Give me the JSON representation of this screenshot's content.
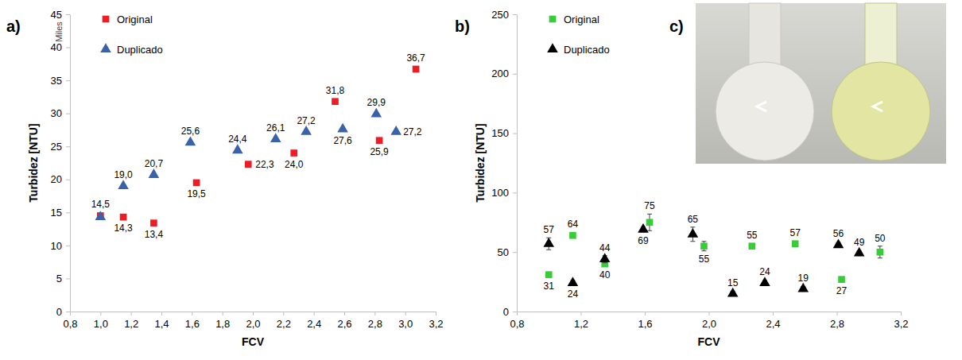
{
  "chart_data": [
    {
      "type": "scatter",
      "panel_label": "a)",
      "x_label": "FCV",
      "y_label": "Turbidez [NTU]",
      "annotations": [
        "Miles"
      ],
      "xlim": [
        0.8,
        3.2
      ],
      "xticks": [
        {
          "value": 0.8,
          "label": "0,8"
        },
        {
          "value": 1.0,
          "label": "1,0"
        },
        {
          "value": 1.2,
          "label": "1,2"
        },
        {
          "value": 1.4,
          "label": "1,4"
        },
        {
          "value": 1.6,
          "label": "1,6"
        },
        {
          "value": 1.8,
          "label": "1,8"
        },
        {
          "value": 2.0,
          "label": "2,0"
        },
        {
          "value": 2.2,
          "label": "2,2"
        },
        {
          "value": 2.4,
          "label": "2,4"
        },
        {
          "value": 2.6,
          "label": "2,6"
        },
        {
          "value": 2.8,
          "label": "2,8"
        },
        {
          "value": 3.0,
          "label": "3,0"
        },
        {
          "value": 3.2,
          "label": "3,2"
        }
      ],
      "ylim": [
        0,
        45
      ],
      "yticks": [
        0,
        5,
        10,
        15,
        20,
        25,
        30,
        35,
        40,
        45
      ],
      "legend": "top-left",
      "data_labels": true,
      "series": [
        {
          "name": "Original",
          "color": "#ee1c24",
          "marker": "square",
          "x": [
            1.0,
            1.15,
            1.35,
            1.63,
            1.97,
            2.27,
            2.54,
            2.83,
            3.07
          ],
          "values": [
            14.5,
            14.3,
            13.4,
            19.5,
            22.3,
            24.0,
            31.8,
            25.9,
            36.7
          ],
          "value_labels": [
            "14,5",
            "14,3",
            "13,4",
            "19,5",
            "22,3",
            "24,0",
            "31,8",
            "25,9",
            "36,7"
          ]
        },
        {
          "name": "Duplicado",
          "color": "#3a62a8",
          "marker": "triangle",
          "x": [
            1.0,
            1.15,
            1.35,
            1.59,
            1.9,
            2.15,
            2.35,
            2.59,
            2.81,
            2.94
          ],
          "values": [
            14.3,
            19.0,
            20.7,
            25.6,
            24.4,
            26.1,
            27.2,
            27.6,
            29.9,
            27.2
          ],
          "value_labels": [
            null,
            "19,0",
            "20,7",
            "25,6",
            "24,4",
            "26,1",
            "27,2",
            "27,6",
            "29,9",
            "27,2"
          ]
        }
      ]
    },
    {
      "type": "scatter",
      "panel_label": "b)",
      "x_label": "FCV",
      "y_label": "Turbidez [NTU]",
      "xlim": [
        0.8,
        3.2
      ],
      "xticks": [
        {
          "value": 0.8,
          "label": "0,8"
        },
        {
          "value": 1.2,
          "label": "1,2"
        },
        {
          "value": 1.6,
          "label": "1,6"
        },
        {
          "value": 2.0,
          "label": "2,0"
        },
        {
          "value": 2.4,
          "label": "2,4"
        },
        {
          "value": 2.8,
          "label": "2,8"
        },
        {
          "value": 3.2,
          "label": "3,2"
        }
      ],
      "ylim": [
        0,
        250
      ],
      "yticks": [
        0,
        50,
        100,
        150,
        200,
        250
      ],
      "legend": "top-left",
      "data_labels": true,
      "series": [
        {
          "name": "Original",
          "color": "#39cc39",
          "marker": "square",
          "x": [
            1.0,
            1.15,
            1.35,
            1.63,
            1.97,
            2.27,
            2.54,
            2.83,
            3.07
          ],
          "values": [
            31,
            64,
            40,
            75,
            55,
            55,
            57,
            27,
            50
          ],
          "errors": [
            2,
            2,
            2,
            7,
            4,
            2,
            2,
            2,
            5
          ]
        },
        {
          "name": "Duplicado",
          "color": "#000000",
          "marker": "triangle",
          "x": [
            1.0,
            1.15,
            1.35,
            1.59,
            1.9,
            2.15,
            2.35,
            2.59,
            2.81,
            2.94
          ],
          "values": [
            57,
            24,
            44,
            69,
            65,
            15,
            24,
            19,
            56,
            49
          ],
          "errors": [
            5,
            2,
            3,
            2,
            6,
            2,
            2,
            2,
            2,
            2
          ]
        }
      ]
    }
  ],
  "photo": {
    "label": "c)"
  }
}
